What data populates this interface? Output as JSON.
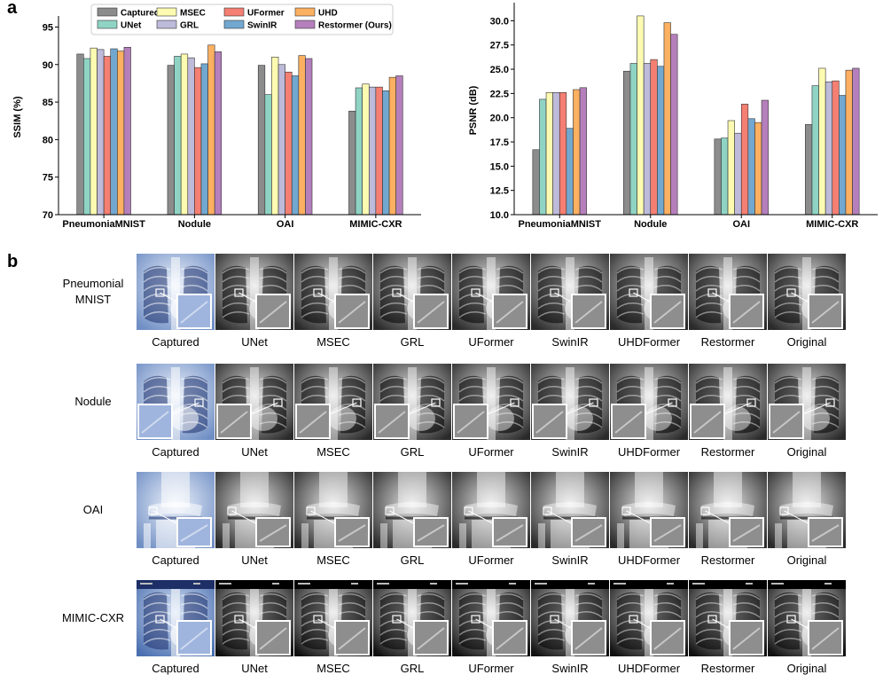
{
  "panel_a_label": "a",
  "panel_b_label": "b",
  "chart_data": [
    {
      "type": "bar",
      "ylabel": "SSIM (%)",
      "xlabel": "",
      "ylim": [
        70,
        96
      ],
      "yticks": [
        70,
        75,
        80,
        85,
        90,
        95
      ],
      "categories": [
        "PneumoniaMNIST",
        "Nodule",
        "OAI",
        "MIMIC-CXR"
      ],
      "legend_position": "top-center",
      "series": [
        {
          "name": "Captured",
          "color": "#8c8c8c",
          "values": [
            91.4,
            89.9,
            89.9,
            83.8
          ]
        },
        {
          "name": "UNet",
          "color": "#8fd3c4",
          "values": [
            90.8,
            91.1,
            86.0,
            86.9
          ]
        },
        {
          "name": "MSEC",
          "color": "#fdfbb1",
          "values": [
            92.2,
            91.4,
            91.0,
            87.4
          ]
        },
        {
          "name": "GRL",
          "color": "#bdbada",
          "values": [
            92.0,
            90.9,
            90.0,
            87.0
          ]
        },
        {
          "name": "UFormer",
          "color": "#f47f72",
          "values": [
            91.1,
            89.6,
            89.0,
            87.0
          ]
        },
        {
          "name": "SwinIR",
          "color": "#72a8d0",
          "values": [
            92.1,
            90.1,
            88.5,
            86.5
          ]
        },
        {
          "name": "UHD",
          "color": "#fcb061",
          "values": [
            91.8,
            92.6,
            91.2,
            88.3
          ]
        },
        {
          "name": "Restormer (Ours)",
          "color": "#b57fbc",
          "values": [
            92.3,
            91.7,
            90.8,
            88.5
          ]
        }
      ]
    },
    {
      "type": "bar",
      "ylabel": "PSNR (dB)",
      "xlabel": "",
      "ylim": [
        10.0,
        31.5
      ],
      "yticks": [
        "10.0",
        "12.5",
        "15.0",
        "17.5",
        "20.0",
        "22.5",
        "25.0",
        "27.5",
        "30.0"
      ],
      "categories": [
        "PneumoniaMNIST",
        "Nodule",
        "OAI",
        "MIMIC-CXR"
      ],
      "series": [
        {
          "name": "Captured",
          "color": "#8c8c8c",
          "values": [
            16.7,
            24.8,
            17.8,
            19.3
          ]
        },
        {
          "name": "UNet",
          "color": "#8fd3c4",
          "values": [
            21.9,
            25.6,
            17.9,
            23.3
          ]
        },
        {
          "name": "MSEC",
          "color": "#fdfbb1",
          "values": [
            22.6,
            30.5,
            19.7,
            25.1
          ]
        },
        {
          "name": "GRL",
          "color": "#bdbada",
          "values": [
            22.6,
            25.6,
            18.4,
            23.7
          ]
        },
        {
          "name": "UFormer",
          "color": "#f47f72",
          "values": [
            22.6,
            26.0,
            21.4,
            23.8
          ]
        },
        {
          "name": "SwinIR",
          "color": "#72a8d0",
          "values": [
            18.9,
            25.3,
            19.9,
            22.3
          ]
        },
        {
          "name": "UHD",
          "color": "#fcb061",
          "values": [
            22.9,
            29.8,
            19.5,
            24.9
          ]
        },
        {
          "name": "Restormer (Ours)",
          "color": "#b57fbc",
          "values": [
            23.1,
            28.6,
            21.8,
            25.1
          ]
        }
      ]
    }
  ],
  "grid": {
    "rows": [
      {
        "label_lines": [
          "Pneumonial",
          "MNIST"
        ],
        "type": "chest",
        "inset": "right"
      },
      {
        "label_lines": [
          "Nodule"
        ],
        "type": "chest",
        "inset": "left"
      },
      {
        "label_lines": [
          "OAI"
        ],
        "type": "knee",
        "inset": "right"
      },
      {
        "label_lines": [
          "MIMIC-CXR"
        ],
        "type": "mimic",
        "inset": "right"
      }
    ],
    "columns": [
      "Captured",
      "UNet",
      "MSEC",
      "GRL",
      "UFormer",
      "SwinIR",
      "UHDFormer",
      "Restormer",
      "Original"
    ]
  }
}
